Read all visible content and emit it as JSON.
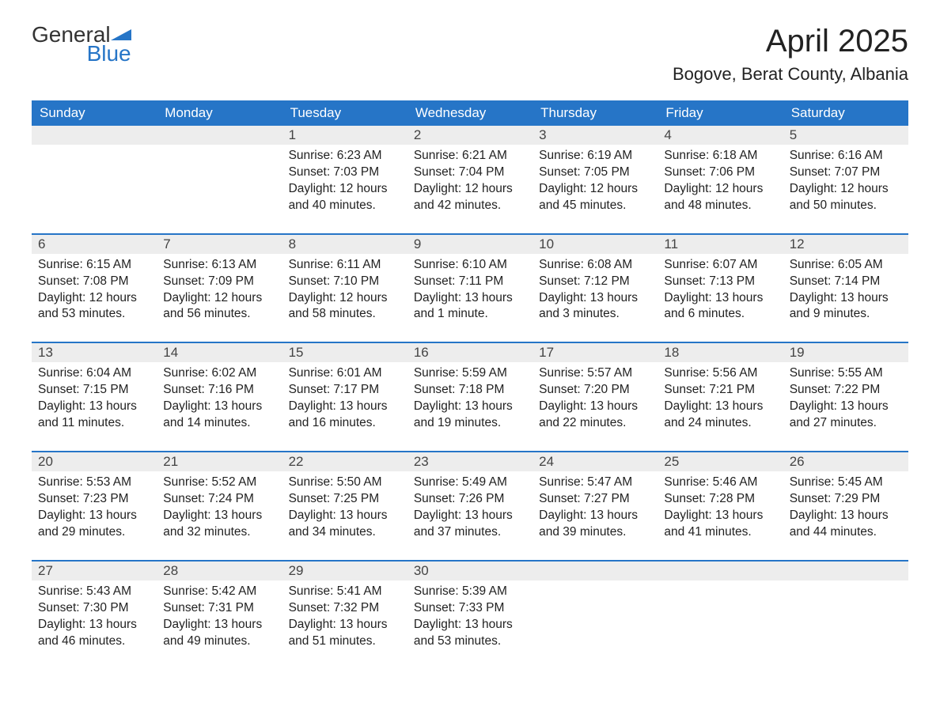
{
  "brand": {
    "part1": "General",
    "part2": "Blue"
  },
  "title": "April 2025",
  "location": "Bogove, Berat County, Albania",
  "colors": {
    "header_bg": "#2675c7",
    "header_text": "#ffffff",
    "daynum_bg": "#ededed",
    "row_divider": "#2675c7",
    "text": "#222222",
    "brand_blue": "#2675c7"
  },
  "weekdays": [
    "Sunday",
    "Monday",
    "Tuesday",
    "Wednesday",
    "Thursday",
    "Friday",
    "Saturday"
  ],
  "weeks": [
    [
      null,
      null,
      {
        "n": "1",
        "sr": "6:23 AM",
        "ss": "7:03 PM",
        "dl": "12 hours and 40 minutes."
      },
      {
        "n": "2",
        "sr": "6:21 AM",
        "ss": "7:04 PM",
        "dl": "12 hours and 42 minutes."
      },
      {
        "n": "3",
        "sr": "6:19 AM",
        "ss": "7:05 PM",
        "dl": "12 hours and 45 minutes."
      },
      {
        "n": "4",
        "sr": "6:18 AM",
        "ss": "7:06 PM",
        "dl": "12 hours and 48 minutes."
      },
      {
        "n": "5",
        "sr": "6:16 AM",
        "ss": "7:07 PM",
        "dl": "12 hours and 50 minutes."
      }
    ],
    [
      {
        "n": "6",
        "sr": "6:15 AM",
        "ss": "7:08 PM",
        "dl": "12 hours and 53 minutes."
      },
      {
        "n": "7",
        "sr": "6:13 AM",
        "ss": "7:09 PM",
        "dl": "12 hours and 56 minutes."
      },
      {
        "n": "8",
        "sr": "6:11 AM",
        "ss": "7:10 PM",
        "dl": "12 hours and 58 minutes."
      },
      {
        "n": "9",
        "sr": "6:10 AM",
        "ss": "7:11 PM",
        "dl": "13 hours and 1 minute."
      },
      {
        "n": "10",
        "sr": "6:08 AM",
        "ss": "7:12 PM",
        "dl": "13 hours and 3 minutes."
      },
      {
        "n": "11",
        "sr": "6:07 AM",
        "ss": "7:13 PM",
        "dl": "13 hours and 6 minutes."
      },
      {
        "n": "12",
        "sr": "6:05 AM",
        "ss": "7:14 PM",
        "dl": "13 hours and 9 minutes."
      }
    ],
    [
      {
        "n": "13",
        "sr": "6:04 AM",
        "ss": "7:15 PM",
        "dl": "13 hours and 11 minutes."
      },
      {
        "n": "14",
        "sr": "6:02 AM",
        "ss": "7:16 PM",
        "dl": "13 hours and 14 minutes."
      },
      {
        "n": "15",
        "sr": "6:01 AM",
        "ss": "7:17 PM",
        "dl": "13 hours and 16 minutes."
      },
      {
        "n": "16",
        "sr": "5:59 AM",
        "ss": "7:18 PM",
        "dl": "13 hours and 19 minutes."
      },
      {
        "n": "17",
        "sr": "5:57 AM",
        "ss": "7:20 PM",
        "dl": "13 hours and 22 minutes."
      },
      {
        "n": "18",
        "sr": "5:56 AM",
        "ss": "7:21 PM",
        "dl": "13 hours and 24 minutes."
      },
      {
        "n": "19",
        "sr": "5:55 AM",
        "ss": "7:22 PM",
        "dl": "13 hours and 27 minutes."
      }
    ],
    [
      {
        "n": "20",
        "sr": "5:53 AM",
        "ss": "7:23 PM",
        "dl": "13 hours and 29 minutes."
      },
      {
        "n": "21",
        "sr": "5:52 AM",
        "ss": "7:24 PM",
        "dl": "13 hours and 32 minutes."
      },
      {
        "n": "22",
        "sr": "5:50 AM",
        "ss": "7:25 PM",
        "dl": "13 hours and 34 minutes."
      },
      {
        "n": "23",
        "sr": "5:49 AM",
        "ss": "7:26 PM",
        "dl": "13 hours and 37 minutes."
      },
      {
        "n": "24",
        "sr": "5:47 AM",
        "ss": "7:27 PM",
        "dl": "13 hours and 39 minutes."
      },
      {
        "n": "25",
        "sr": "5:46 AM",
        "ss": "7:28 PM",
        "dl": "13 hours and 41 minutes."
      },
      {
        "n": "26",
        "sr": "5:45 AM",
        "ss": "7:29 PM",
        "dl": "13 hours and 44 minutes."
      }
    ],
    [
      {
        "n": "27",
        "sr": "5:43 AM",
        "ss": "7:30 PM",
        "dl": "13 hours and 46 minutes."
      },
      {
        "n": "28",
        "sr": "5:42 AM",
        "ss": "7:31 PM",
        "dl": "13 hours and 49 minutes."
      },
      {
        "n": "29",
        "sr": "5:41 AM",
        "ss": "7:32 PM",
        "dl": "13 hours and 51 minutes."
      },
      {
        "n": "30",
        "sr": "5:39 AM",
        "ss": "7:33 PM",
        "dl": "13 hours and 53 minutes."
      },
      null,
      null,
      null
    ]
  ],
  "labels": {
    "sunrise": "Sunrise: ",
    "sunset": "Sunset: ",
    "daylight": "Daylight: "
  }
}
